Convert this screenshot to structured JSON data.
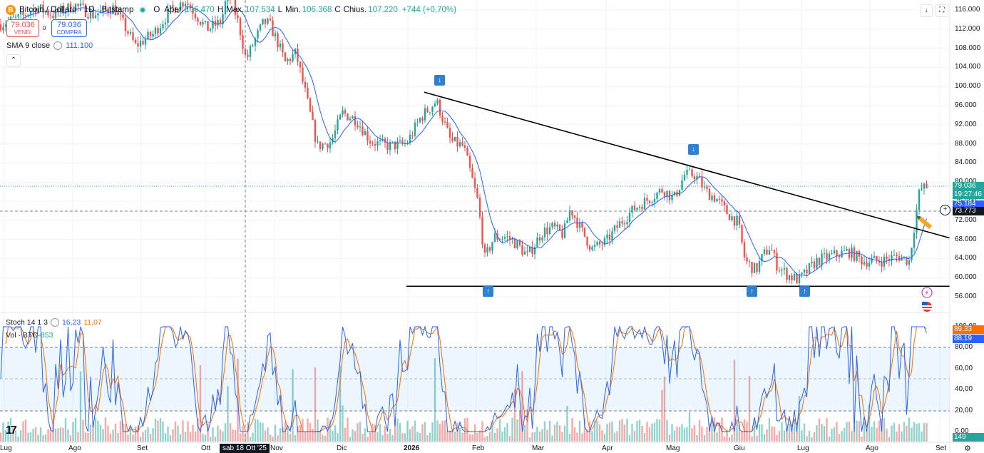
{
  "header": {
    "coin_icon": "B",
    "symbol": "Bitcoin / Dollaro · 1D · Bitstamp",
    "open_label": "O",
    "open_prefix": "Aper.",
    "open_value": "106.470",
    "high_label": "H",
    "high_prefix": "Max.",
    "high_value": "107.534",
    "low_label": "L",
    "low_prefix": "Min.",
    "low_value": "106.368",
    "close_label": "C",
    "close_prefix": "Chius.",
    "close_value": "107.220",
    "change": "+744 (+0,70%)"
  },
  "trade": {
    "sell_price": "79.036",
    "sell_label": "VENDI",
    "spread": "0",
    "buy_price": "79.036",
    "buy_label": "COMPRA"
  },
  "sma": {
    "label": "SMA 9 close",
    "value": "111.100"
  },
  "top_buttons": [
    "down-arrow-icon",
    "fullscreen-icon"
  ],
  "price_axis": [
    "116.000",
    "112.000",
    "108.000",
    "104.000",
    "100.000",
    "96.000",
    "92.000",
    "88.000",
    "84.000",
    "80.000",
    "76.000",
    "72.000",
    "68.000",
    "64.000",
    "60.000",
    "56.000"
  ],
  "price_tags": {
    "last": "79.036",
    "countdown": "19:27:46",
    "sma": "75.184",
    "crosshair": "73.773"
  },
  "stoch": {
    "label": "Stoch 14 1 3",
    "k": "16,23",
    "d": "11,07",
    "tag_k": "89,33",
    "tag_d": "88,19",
    "axis": [
      "100,00",
      "80,00",
      "60,00",
      "40,00",
      "20,00",
      "0,00"
    ]
  },
  "volume": {
    "label": "Vol · BTC",
    "value": "853",
    "tag": "149"
  },
  "x_axis": [
    "Lug",
    "Ago",
    "Set",
    "Ott",
    "Nov",
    "Dic",
    "2026",
    "Feb",
    "Mar",
    "Apr",
    "Mag",
    "Giu",
    "Lug",
    "Ago",
    "Set"
  ],
  "crosshair_date": "sab 18 Ott '25",
  "colors": {
    "up": "#26a69a",
    "down": "#ef5350",
    "sma": "#2962ff",
    "stoch_k": "#2962ff",
    "stoch_d": "#ff6d00"
  },
  "chart_data": {
    "type": "candlestick",
    "title": "Bitcoin / Dollaro · 1D · Bitstamp",
    "ylim": [
      56000,
      116000
    ],
    "price_path": [
      [
        0,
        113000
      ],
      [
        30,
        114500
      ],
      [
        50,
        116500
      ],
      [
        75,
        115000
      ],
      [
        105,
        117000
      ],
      [
        130,
        115000
      ],
      [
        160,
        116500
      ],
      [
        190,
        108500
      ],
      [
        215,
        111000
      ],
      [
        240,
        116000
      ],
      [
        260,
        118000
      ],
      [
        290,
        112000
      ],
      [
        310,
        113500
      ],
      [
        320,
        120000
      ],
      [
        335,
        113000
      ],
      [
        345,
        105500
      ],
      [
        360,
        110500
      ],
      [
        370,
        113500
      ],
      [
        378,
        113000
      ],
      [
        390,
        109000
      ],
      [
        400,
        105000
      ],
      [
        415,
        107000
      ],
      [
        430,
        97500
      ],
      [
        445,
        87500
      ],
      [
        465,
        88500
      ],
      [
        480,
        94500
      ],
      [
        500,
        93000
      ],
      [
        520,
        88500
      ],
      [
        545,
        87500
      ],
      [
        570,
        88000
      ],
      [
        590,
        93500
      ],
      [
        612,
        97000
      ],
      [
        632,
        88500
      ],
      [
        650,
        87500
      ],
      [
        670,
        76000
      ],
      [
        680,
        64000
      ],
      [
        693,
        68500
      ],
      [
        710,
        68500
      ],
      [
        725,
        67000
      ],
      [
        740,
        64500
      ],
      [
        760,
        69500
      ],
      [
        775,
        70500
      ],
      [
        790,
        69000
      ],
      [
        800,
        74500
      ],
      [
        815,
        70000
      ],
      [
        830,
        66000
      ],
      [
        850,
        67500
      ],
      [
        870,
        71500
      ],
      [
        890,
        74500
      ],
      [
        910,
        76500
      ],
      [
        930,
        78500
      ],
      [
        945,
        76500
      ],
      [
        960,
        81500
      ],
      [
        975,
        81500
      ],
      [
        990,
        78000
      ],
      [
        1005,
        76500
      ],
      [
        1020,
        73500
      ],
      [
        1035,
        71500
      ],
      [
        1045,
        63500
      ],
      [
        1060,
        61500
      ],
      [
        1070,
        64500
      ],
      [
        1080,
        66500
      ],
      [
        1090,
        62500
      ],
      [
        1105,
        60500
      ],
      [
        1120,
        59500
      ],
      [
        1130,
        61000
      ],
      [
        1145,
        63500
      ],
      [
        1165,
        64500
      ],
      [
        1190,
        65500
      ],
      [
        1210,
        63500
      ],
      [
        1235,
        63500
      ],
      [
        1260,
        64500
      ],
      [
        1275,
        63500
      ],
      [
        1290,
        78500
      ],
      [
        1302,
        79000
      ]
    ],
    "trendline_top": [
      [
        595,
        98800
      ],
      [
        1332,
        68300
      ]
    ],
    "support_line": [
      [
        570,
        58200
      ],
      [
        1332,
        58200
      ]
    ],
    "markers_down": [
      [
        616,
        99200
      ],
      [
        972,
        84700
      ]
    ],
    "markers_up": [
      [
        684,
        57300
      ],
      [
        1054,
        57300
      ],
      [
        1128,
        57300
      ]
    ]
  }
}
